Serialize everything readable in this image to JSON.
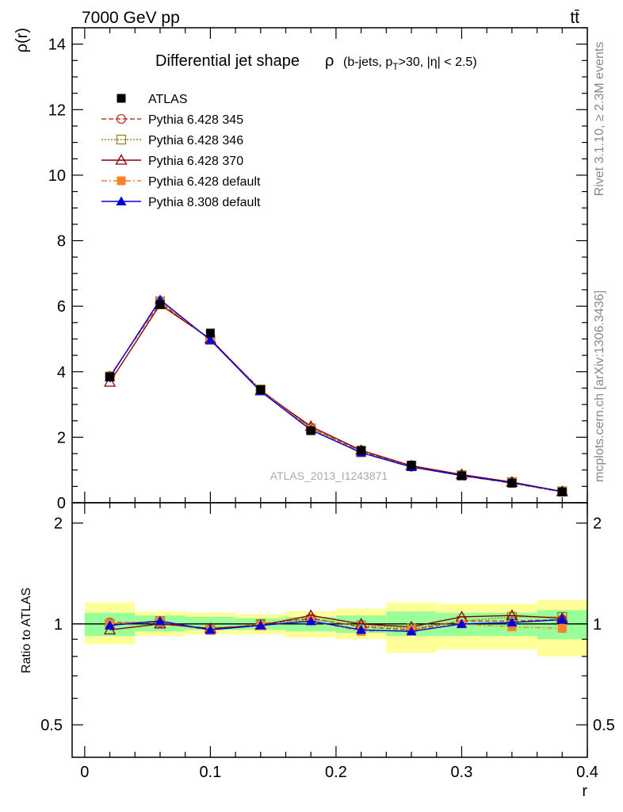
{
  "header": {
    "left": "7000 GeV pp",
    "right": "tt̄"
  },
  "side": {
    "rivet": "Rivet 3.1.10, ≥ 2.3M events",
    "mcplots": "mcplots.cern.ch [arXiv:1306.3436]"
  },
  "chart_data": [
    {
      "type": "line",
      "title": "Differential jet shape",
      "title_symbol": "ρ",
      "subtitle_prefix": "(b-jets, p",
      "subtitle_sub": "T",
      "subtitle_suffix": ">30, |η| < 2.5)",
      "ylabel": "ρ(r)",
      "xlabel": "r",
      "watermark": "ATLAS_2013_I1243871",
      "xlim": [
        -0.01,
        0.4
      ],
      "ylim": [
        0,
        14.5
      ],
      "yticks": [
        0,
        2,
        4,
        6,
        8,
        10,
        12,
        14
      ],
      "yticklabels": [
        "0",
        "2",
        "4",
        "6",
        "8",
        "10",
        "12",
        "14"
      ],
      "legend_position": "top-left",
      "x": [
        0.02,
        0.06,
        0.1,
        0.14,
        0.18,
        0.22,
        0.26,
        0.3,
        0.34,
        0.38
      ],
      "series": [
        {
          "name": "ATLAS",
          "color": "#000000",
          "marker": "square-filled",
          "dash": "none",
          "values": [
            3.85,
            6.05,
            5.18,
            3.45,
            2.2,
            1.6,
            1.15,
            0.82,
            0.6,
            0.33
          ]
        },
        {
          "name": "Pythia 6.428 345",
          "color": "#c0392b",
          "marker": "circle-open",
          "dash": "6,3",
          "values": [
            3.87,
            6.1,
            4.98,
            3.45,
            2.28,
            1.57,
            1.1,
            0.84,
            0.61,
            0.34
          ]
        },
        {
          "name": "Pythia 6.428 346",
          "color": "#9a7d2b",
          "marker": "square-open",
          "dash": "2,2",
          "values": [
            3.85,
            6.15,
            4.97,
            3.46,
            2.27,
            1.58,
            1.12,
            0.84,
            0.63,
            0.35
          ]
        },
        {
          "name": "Pythia 6.428 370",
          "color": "#8b0000",
          "marker": "triangle-open",
          "dash": "none",
          "values": [
            3.68,
            6.05,
            5.0,
            3.42,
            2.33,
            1.6,
            1.13,
            0.86,
            0.63,
            0.34
          ]
        },
        {
          "name": "Pythia 6.428 default",
          "color": "#ff7f2a",
          "marker": "square-filled",
          "dash": "7,3,2,3",
          "values": [
            3.86,
            6.15,
            4.97,
            3.42,
            2.25,
            1.52,
            1.1,
            0.82,
            0.59,
            0.32
          ]
        },
        {
          "name": "Pythia 8.308 default",
          "color": "#0000dd",
          "marker": "triangle-filled",
          "dash": "none",
          "values": [
            3.83,
            6.2,
            4.97,
            3.4,
            2.22,
            1.53,
            1.09,
            0.83,
            0.61,
            0.34
          ]
        }
      ]
    },
    {
      "type": "line",
      "ylabel": "Ratio to ATLAS",
      "xlabel": "r",
      "xlim": [
        -0.01,
        0.4
      ],
      "ylim": [
        0.4,
        2.3
      ],
      "yscale": "log",
      "yticks": [
        0.5,
        1,
        2
      ],
      "yticklabels": [
        "0.5",
        "1",
        "2"
      ],
      "xticks": [
        0,
        0.1,
        0.2,
        0.3,
        0.4
      ],
      "xticklabels": [
        "0",
        "0.1",
        "0.2",
        "0.3",
        "0.4"
      ],
      "band_colors": {
        "inner": "#99ff99",
        "outer": "#ffff99"
      },
      "bands": [
        {
          "x0": 0.0,
          "x1": 0.04,
          "outer": [
            0.87,
            1.16
          ],
          "inner": [
            0.92,
            1.08
          ]
        },
        {
          "x0": 0.04,
          "x1": 0.08,
          "outer": [
            0.92,
            1.09
          ],
          "inner": [
            0.95,
            1.06
          ]
        },
        {
          "x0": 0.08,
          "x1": 0.12,
          "outer": [
            0.93,
            1.08
          ],
          "inner": [
            0.96,
            1.05
          ]
        },
        {
          "x0": 0.12,
          "x1": 0.16,
          "outer": [
            0.93,
            1.07
          ],
          "inner": [
            0.96,
            1.04
          ]
        },
        {
          "x0": 0.16,
          "x1": 0.2,
          "outer": [
            0.91,
            1.09
          ],
          "inner": [
            0.95,
            1.05
          ]
        },
        {
          "x0": 0.2,
          "x1": 0.24,
          "outer": [
            0.9,
            1.11
          ],
          "inner": [
            0.94,
            1.06
          ]
        },
        {
          "x0": 0.24,
          "x1": 0.28,
          "outer": [
            0.82,
            1.16
          ],
          "inner": [
            0.92,
            1.09
          ]
        },
        {
          "x0": 0.28,
          "x1": 0.34,
          "outer": [
            0.84,
            1.15
          ],
          "inner": [
            0.92,
            1.08
          ]
        },
        {
          "x0": 0.34,
          "x1": 0.36,
          "outer": [
            0.84,
            1.15
          ],
          "inner": [
            0.92,
            1.08
          ]
        },
        {
          "x0": 0.36,
          "x1": 0.4,
          "outer": [
            0.8,
            1.18
          ],
          "inner": [
            0.9,
            1.1
          ]
        }
      ],
      "x": [
        0.02,
        0.06,
        0.1,
        0.14,
        0.18,
        0.22,
        0.26,
        0.3,
        0.34,
        0.38
      ],
      "series": [
        {
          "name": "Pythia 6.428 345",
          "color": "#c0392b",
          "marker": "circle-open",
          "dash": "6,3",
          "values": [
            1.01,
            1.01,
            0.96,
            1.0,
            1.04,
            0.98,
            0.96,
            1.02,
            1.02,
            1.03
          ]
        },
        {
          "name": "Pythia 6.428 346",
          "color": "#9a7d2b",
          "marker": "square-open",
          "dash": "2,2",
          "values": [
            1.0,
            1.02,
            0.96,
            1.0,
            1.03,
            0.99,
            0.97,
            1.02,
            1.05,
            1.05
          ]
        },
        {
          "name": "Pythia 6.428 370",
          "color": "#8b0000",
          "marker": "triangle-open",
          "dash": "none",
          "values": [
            0.96,
            1.0,
            0.97,
            0.99,
            1.06,
            1.0,
            0.98,
            1.05,
            1.06,
            1.04
          ]
        },
        {
          "name": "Pythia 6.428 default",
          "color": "#ff7f2a",
          "marker": "square-filled",
          "dash": "7,3,2,3",
          "values": [
            1.0,
            1.02,
            0.96,
            0.99,
            1.02,
            0.95,
            0.96,
            1.0,
            0.98,
            0.97
          ]
        },
        {
          "name": "Pythia 8.308 default",
          "color": "#0000dd",
          "marker": "triangle-filled",
          "dash": "none",
          "values": [
            0.99,
            1.02,
            0.96,
            0.99,
            1.02,
            0.96,
            0.95,
            1.0,
            1.01,
            1.03
          ]
        }
      ]
    }
  ]
}
